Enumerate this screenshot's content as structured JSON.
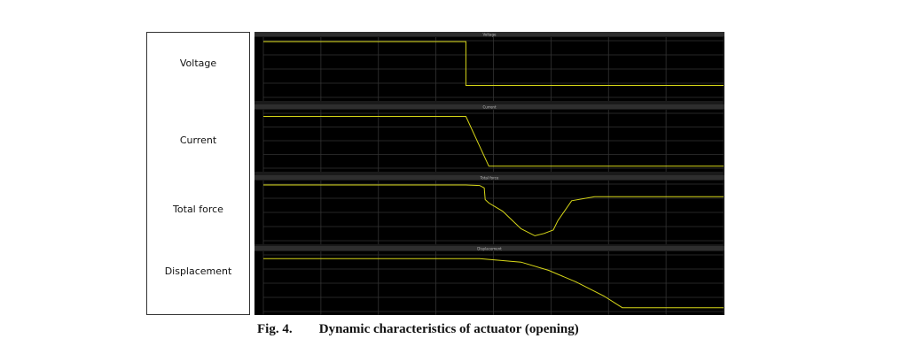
{
  "row_labels": [
    "Voltage",
    "Current",
    "Total force",
    "Displacement"
  ],
  "caption": {
    "figure_number": "Fig. 4.",
    "text": "Dynamic characteristics of actuator (opening)"
  },
  "colors": {
    "scope_background": "#000000",
    "scope_frame": "#1a1a1a",
    "title_bar": "#2e2e2e",
    "grid": "#333333",
    "trace": "#d8d818"
  },
  "chart_data": [
    {
      "type": "line",
      "title": "Voltage",
      "xlim": [
        0,
        1
      ],
      "ylim": [
        0,
        1
      ],
      "series": [
        {
          "x": [
            0,
            0.44,
            0.44,
            1
          ],
          "y": [
            0.97,
            0.97,
            0.22,
            0.22
          ]
        }
      ]
    },
    {
      "type": "line",
      "title": "Current",
      "xlim": [
        0,
        1
      ],
      "ylim": [
        0,
        1
      ],
      "series": [
        {
          "x": [
            0,
            0.44,
            0.49,
            1
          ],
          "y": [
            0.93,
            0.93,
            0.05,
            0.05
          ]
        }
      ]
    },
    {
      "type": "line",
      "title": "Total force",
      "xlim": [
        0,
        1
      ],
      "ylim": [
        0,
        1
      ],
      "series": [
        {
          "x": [
            0,
            0.44,
            0.47,
            0.48,
            0.482,
            0.49,
            0.52,
            0.56,
            0.59,
            0.61,
            0.63,
            0.64,
            0.67,
            0.72,
            1
          ],
          "y": [
            0.97,
            0.97,
            0.96,
            0.92,
            0.72,
            0.66,
            0.52,
            0.22,
            0.1,
            0.14,
            0.2,
            0.36,
            0.7,
            0.77,
            0.77
          ]
        }
      ]
    },
    {
      "type": "line",
      "title": "Displacement",
      "xlim": [
        0,
        1
      ],
      "ylim": [
        0,
        1
      ],
      "series": [
        {
          "x": [
            0,
            0.47,
            0.56,
            0.62,
            0.68,
            0.74,
            0.78,
            1
          ],
          "y": [
            0.92,
            0.92,
            0.86,
            0.72,
            0.52,
            0.28,
            0.08,
            0.08
          ]
        }
      ]
    }
  ]
}
